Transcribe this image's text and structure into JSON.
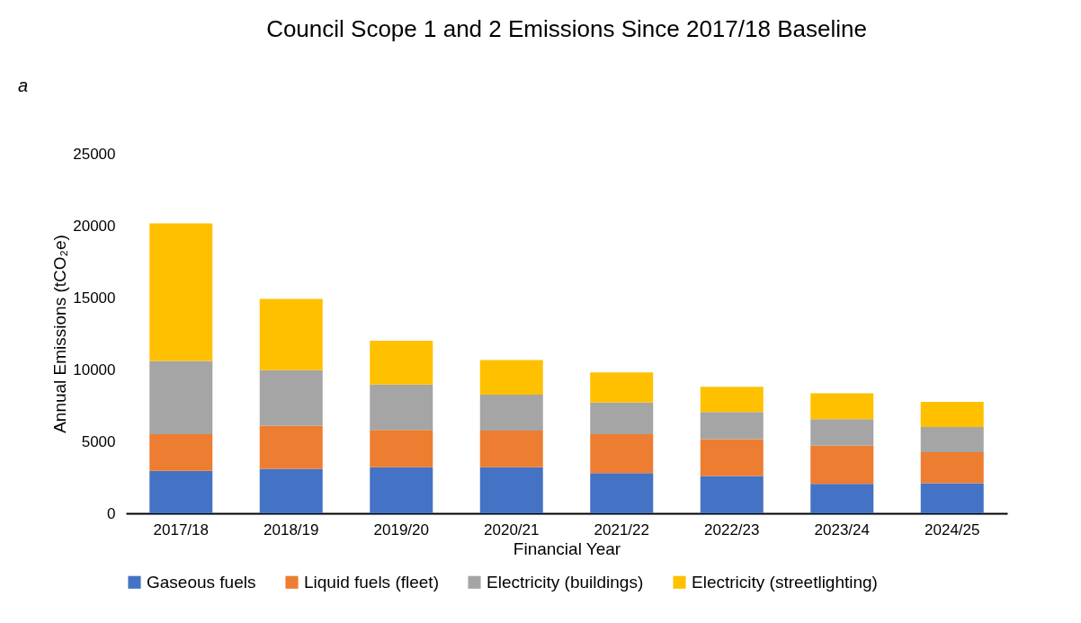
{
  "chart_data": {
    "type": "bar",
    "stacked": true,
    "title": "Council Scope 1 and 2 Emissions Since 2017/18 Baseline",
    "xlabel": "Financial Year",
    "ylabel": "Annual Emissions (tCO₂e)",
    "annotations": [
      "a"
    ],
    "categories": [
      "2017/18",
      "2018/19",
      "2019/20",
      "2020/21",
      "2021/22",
      "2022/23",
      "2023/24",
      "2024/25"
    ],
    "series": [
      {
        "name": "Gaseous fuels",
        "color": "#4472c4",
        "values": [
          2950,
          3100,
          3200,
          3200,
          2800,
          2600,
          2050,
          2100
        ]
      },
      {
        "name": "Liquid fuels (fleet)",
        "color": "#ed7d31",
        "values": [
          2550,
          3000,
          2600,
          2550,
          2700,
          2550,
          2650,
          2150
        ]
      },
      {
        "name": "Electricity (buildings)",
        "color": "#a5a5a5",
        "values": [
          5100,
          3850,
          3150,
          2500,
          2200,
          1900,
          1850,
          1750
        ]
      },
      {
        "name": "Electricity (streetlighting)",
        "color": "#ffc000",
        "values": [
          9550,
          4950,
          3050,
          2400,
          2100,
          1750,
          1800,
          1750
        ]
      }
    ],
    "ylim": [
      0,
      25000
    ],
    "yticks": [
      0,
      5000,
      10000,
      15000,
      20000,
      25000
    ],
    "grid": false,
    "legend": "bottom"
  }
}
